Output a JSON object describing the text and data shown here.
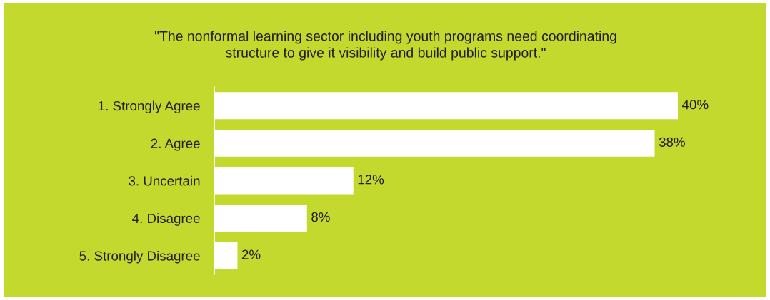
{
  "chart_data": {
    "type": "bar",
    "orientation": "horizontal",
    "title": "\"The nonformal learning sector including youth programs need coordinating\nstructure to give it visibility and build public support.\"",
    "categories": [
      "1. Strongly Agree",
      "2. Agree",
      "3. Uncertain",
      "4. Disagree",
      "5. Strongly Disagree"
    ],
    "values": [
      40,
      38,
      12,
      8,
      2
    ],
    "value_labels": [
      "40%",
      "38%",
      "12%",
      "8%",
      "2%"
    ],
    "color": "#ffffff",
    "grid": false,
    "legend": false,
    "tick_labels": "y"
  }
}
